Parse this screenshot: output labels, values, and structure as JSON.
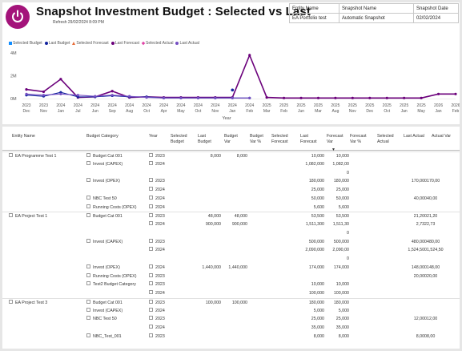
{
  "header": {
    "title": "Snapshot Investment Budget : Selected vs Last",
    "refresh": "Refresh 29/02/2024 8:09 PM"
  },
  "info_table": {
    "headers": [
      "Entity Name",
      "Snapshot Name",
      "Snapshot Date"
    ],
    "values": [
      "EA Portfolio test",
      "Automatic Snapshot",
      "02/02/2024"
    ]
  },
  "legend": {
    "items": [
      {
        "label": "Selected Budget",
        "color": "#118dff",
        "shape": "square"
      },
      {
        "label": "Last Budget",
        "color": "#12239e",
        "shape": "circle"
      },
      {
        "label": "Selected Forecast",
        "color": "#e66c37",
        "shape": "triangle"
      },
      {
        "label": "Last Forecast",
        "color": "#6b007b",
        "shape": "circle"
      },
      {
        "label": "Selected Actual",
        "color": "#e044a7",
        "shape": "diamond"
      },
      {
        "label": "Last Actual",
        "color": "#744ec2",
        "shape": "circle"
      }
    ]
  },
  "chart_data": {
    "type": "line",
    "xlabel": "Year",
    "x_years": [
      "2023",
      "2023",
      "2024",
      "2024",
      "2024",
      "2024",
      "2024",
      "2024",
      "2024",
      "2024",
      "2024",
      "2024",
      "2024",
      "2024",
      "2025",
      "2025",
      "2025",
      "2025",
      "2025",
      "2025",
      "2025",
      "2025",
      "2025",
      "2025",
      "2026",
      "2026"
    ],
    "x_months": [
      "Dec",
      "Nov",
      "Jan",
      "Jul",
      "Jun",
      "Sep",
      "Aug",
      "Oct",
      "Apr",
      "May",
      "Oct",
      "Nov",
      "Jan",
      "Feb",
      "Mar",
      "Feb",
      "Jun",
      "Mar",
      "Aug",
      "Nov",
      "Dec",
      "Oct",
      "Jan",
      "May",
      "Jan",
      "Feb"
    ],
    "y_ticks": [
      "4M",
      "2M",
      "0M"
    ],
    "ylim": [
      0,
      4000000
    ],
    "series": [
      {
        "name": "Last Forecast",
        "color": "#6b007b",
        "values": [
          800000,
          600000,
          1700000,
          100000,
          150000,
          650000,
          100000,
          150000,
          100000,
          100000,
          100000,
          100000,
          100000,
          3800000,
          100000,
          50000,
          50000,
          50000,
          50000,
          50000,
          50000,
          50000,
          50000,
          50000,
          400000,
          400000
        ]
      },
      {
        "name": "Last Budget",
        "color": "#12239e",
        "values": [
          300000,
          200000,
          550000,
          150000,
          150000,
          250000,
          150000,
          150000,
          50000,
          50000,
          50000,
          50000,
          50000,
          50000,
          null,
          null,
          null,
          null,
          null,
          null,
          null,
          null,
          null,
          null,
          null,
          null
        ]
      },
      {
        "name": "Last Actual",
        "color": "#744ec2",
        "values": [
          400000,
          300000,
          400000,
          300000,
          200000,
          300000,
          200000,
          100000,
          50000,
          50000,
          50000,
          50000,
          50000,
          50000,
          null,
          null,
          null,
          null,
          null,
          null,
          null,
          null,
          null,
          null,
          null,
          null
        ]
      }
    ],
    "points": [
      {
        "name": "Last Budget",
        "x_index": 12,
        "value": 750000,
        "color": "#12239e"
      }
    ],
    "grid": false,
    "legend_position": "top-left"
  },
  "table": {
    "columns": [
      "Entity Name",
      "Budget Category",
      "Year",
      "Selected Budget",
      "Last Budget",
      "Budget Var",
      "Budget Var %",
      "Selected Forecast",
      "Last Forecast",
      "Forecast Var",
      "Forecast Var %",
      "Selected Actual",
      "Last Actual",
      "Actual Var"
    ],
    "rows": [
      {
        "entity": "EA Programme Test 1",
        "category": "Budget Cat 001",
        "year": "2023",
        "last_budget": "8,000",
        "budget_var": "8,000",
        "last_forecast": "10,000",
        "forecast_var": "10,000",
        "last_actual": "",
        "actual_var": ""
      },
      {
        "entity": "",
        "category": "Invest (CAPEX)",
        "year": "2024",
        "last_budget": "",
        "budget_var": "",
        "last_forecast": "1,082,000",
        "forecast_var": "1,082,00",
        "last_actual": "",
        "actual_var": ""
      },
      {
        "entity": "",
        "category": "",
        "year": "",
        "last_budget": "",
        "budget_var": "",
        "last_forecast": "",
        "forecast_var": "0",
        "last_actual": "",
        "actual_var": ""
      },
      {
        "entity": "",
        "category": "Invest (OPEX)",
        "year": "2023",
        "last_budget": "",
        "budget_var": "",
        "last_forecast": "180,000",
        "forecast_var": "180,000",
        "last_actual": "170,000",
        "actual_var": "170,00"
      },
      {
        "entity": "",
        "category": "",
        "year": "2024",
        "last_budget": "",
        "budget_var": "",
        "last_forecast": "25,000",
        "forecast_var": "25,000",
        "last_actual": "",
        "actual_var": ""
      },
      {
        "entity": "",
        "category": "NBC Test 50",
        "year": "2024",
        "last_budget": "",
        "budget_var": "",
        "last_forecast": "50,000",
        "forecast_var": "50,000",
        "last_actual": "40,000",
        "actual_var": "40,00"
      },
      {
        "entity": "",
        "category": "Running Costs (OPEX)",
        "year": "2024",
        "last_budget": "",
        "budget_var": "",
        "last_forecast": "5,600",
        "forecast_var": "5,600",
        "last_actual": "",
        "actual_var": ""
      },
      {
        "entity": "EA Project Test 1",
        "category": "Budget Cat 001",
        "year": "2023",
        "last_budget": "48,000",
        "budget_var": "48,000",
        "last_forecast": "53,500",
        "forecast_var": "53,500",
        "last_actual": "21,200",
        "actual_var": "21,20"
      },
      {
        "entity": "",
        "category": "",
        "year": "2024",
        "last_budget": "900,000",
        "budget_var": "900,000",
        "last_forecast": "1,511,300",
        "forecast_var": "1,511,30",
        "last_actual": "2,732",
        "actual_var": "2,73"
      },
      {
        "entity": "",
        "category": "",
        "year": "",
        "last_budget": "",
        "budget_var": "",
        "last_forecast": "",
        "forecast_var": "0",
        "last_actual": "",
        "actual_var": ""
      },
      {
        "entity": "",
        "category": "Invest (CAPEX)",
        "year": "2023",
        "last_budget": "",
        "budget_var": "",
        "last_forecast": "500,000",
        "forecast_var": "500,000",
        "last_actual": "480,000",
        "actual_var": "480,00"
      },
      {
        "entity": "",
        "category": "",
        "year": "2024",
        "last_budget": "",
        "budget_var": "",
        "last_forecast": "2,090,000",
        "forecast_var": "2,090,00",
        "last_actual": "1,524,500",
        "actual_var": "1,524,50"
      },
      {
        "entity": "",
        "category": "",
        "year": "",
        "last_budget": "",
        "budget_var": "",
        "last_forecast": "",
        "forecast_var": "0",
        "last_actual": "",
        "actual_var": ""
      },
      {
        "entity": "",
        "category": "Invest (OPEX)",
        "year": "2024",
        "last_budget": "1,440,000",
        "budget_var": "1,440,000",
        "last_forecast": "174,000",
        "forecast_var": "174,000",
        "last_actual": "148,000",
        "actual_var": "148,00"
      },
      {
        "entity": "",
        "category": "Running Costs (OPEX)",
        "year": "2023",
        "last_budget": "",
        "budget_var": "",
        "last_forecast": "",
        "forecast_var": "",
        "last_actual": "20,000",
        "actual_var": "20,00"
      },
      {
        "entity": "",
        "category": "Test2 Budget Category",
        "year": "2023",
        "last_budget": "",
        "budget_var": "",
        "last_forecast": "10,000",
        "forecast_var": "10,000",
        "last_actual": "",
        "actual_var": ""
      },
      {
        "entity": "",
        "category": "",
        "year": "2024",
        "last_budget": "",
        "budget_var": "",
        "last_forecast": "100,000",
        "forecast_var": "100,000",
        "last_actual": "",
        "actual_var": ""
      },
      {
        "entity": "EA Project Test 3",
        "category": "Budget Cat 001",
        "year": "2023",
        "last_budget": "100,000",
        "budget_var": "100,000",
        "last_forecast": "180,000",
        "forecast_var": "180,000",
        "last_actual": "",
        "actual_var": ""
      },
      {
        "entity": "",
        "category": "Invest (CAPEX)",
        "year": "2024",
        "last_budget": "",
        "budget_var": "",
        "last_forecast": "5,000",
        "forecast_var": "5,000",
        "last_actual": "",
        "actual_var": ""
      },
      {
        "entity": "",
        "category": "NBC Test 50",
        "year": "2023",
        "last_budget": "",
        "budget_var": "",
        "last_forecast": "25,000",
        "forecast_var": "25,000",
        "last_actual": "12,000",
        "actual_var": "12,00"
      },
      {
        "entity": "",
        "category": "",
        "year": "2024",
        "last_budget": "",
        "budget_var": "",
        "last_forecast": "35,000",
        "forecast_var": "35,000",
        "last_actual": "",
        "actual_var": ""
      },
      {
        "entity": "",
        "category": "NBC_Test_001",
        "year": "2023",
        "last_budget": "",
        "budget_var": "",
        "last_forecast": "8,000",
        "forecast_var": "8,000",
        "last_actual": "8,000",
        "actual_var": "8,00"
      }
    ]
  }
}
